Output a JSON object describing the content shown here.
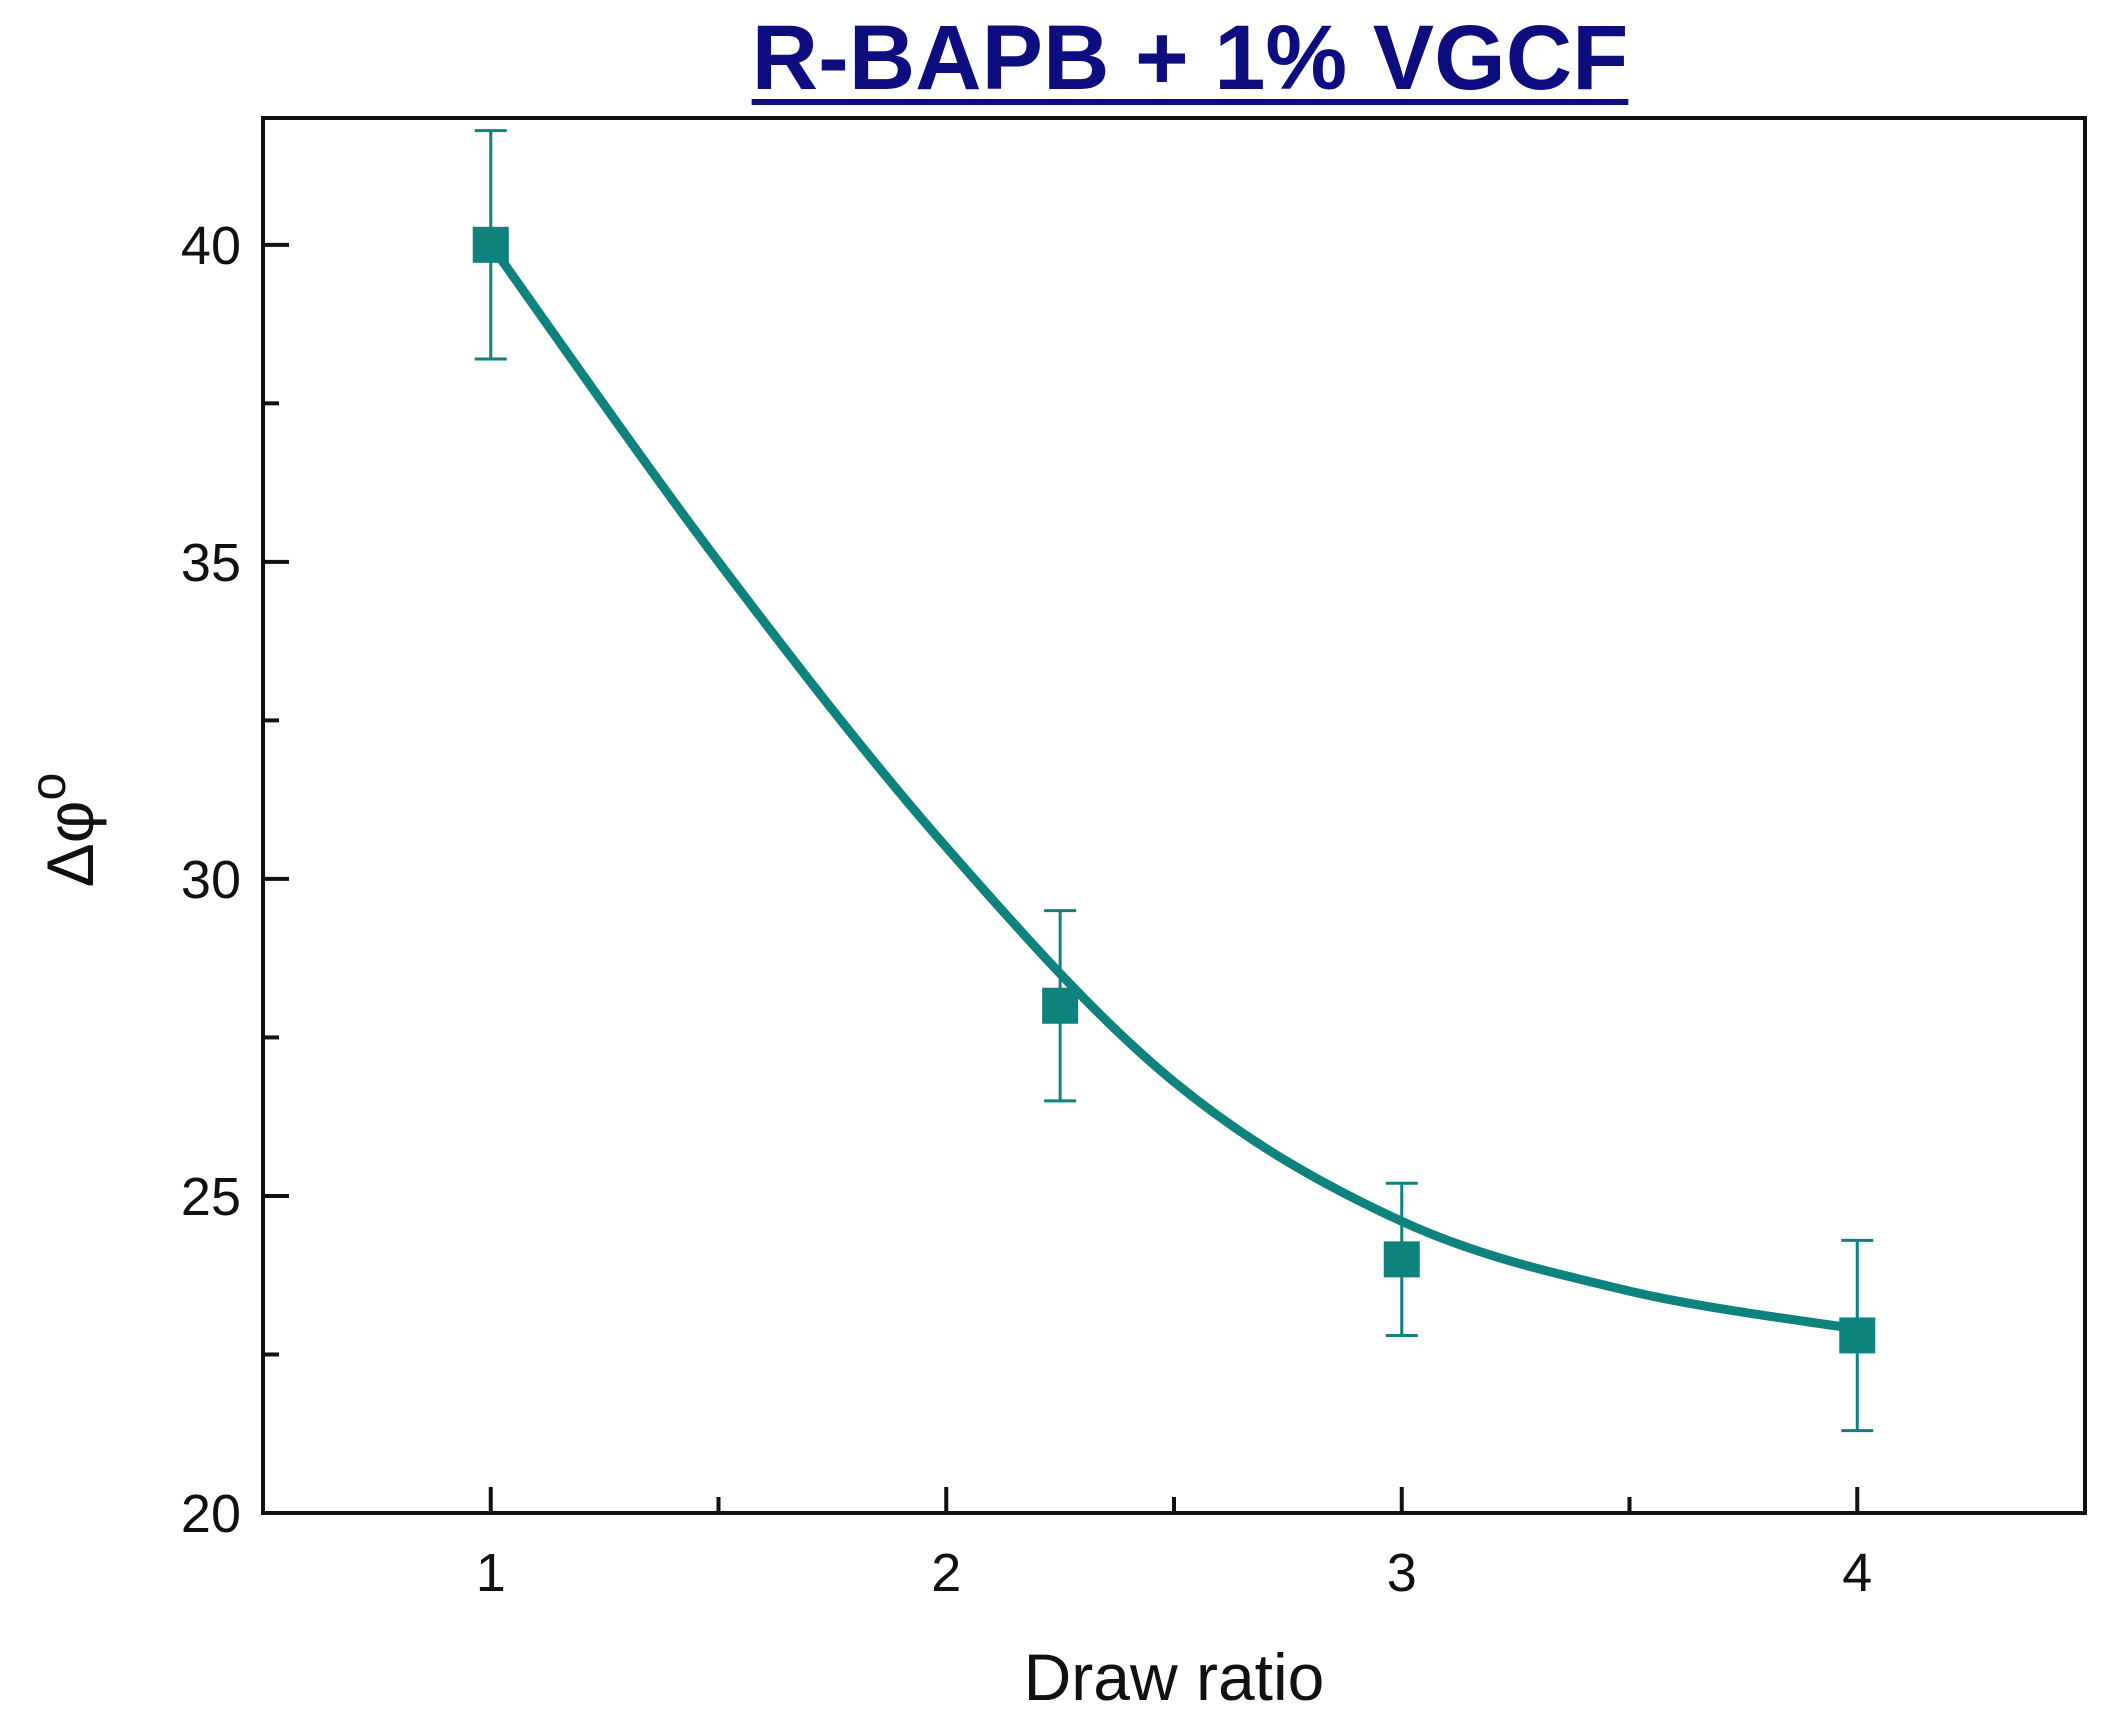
{
  "chart_data": {
    "type": "line",
    "title": "R-BAPB + 1% VGCF",
    "xlabel": "Draw ratio",
    "ylabel": "Δφ",
    "ylabel_superscript": "o",
    "xlim": [
      0.5,
      4.5
    ],
    "ylim": [
      20,
      42
    ],
    "x_ticks": [
      1,
      2,
      3,
      4
    ],
    "y_ticks": [
      20,
      25,
      30,
      35,
      40
    ],
    "series": [
      {
        "name": "R-BAPB + 1% VGCF",
        "marker": "square",
        "color": "#0e827c",
        "points": [
          {
            "x": 1.0,
            "y": 40.0,
            "err_low": 38.2,
            "err_high": 41.8
          },
          {
            "x": 2.25,
            "y": 28.0,
            "err_low": 26.5,
            "err_high": 29.5
          },
          {
            "x": 3.0,
            "y": 24.0,
            "err_low": 22.8,
            "err_high": 25.2
          },
          {
            "x": 4.0,
            "y": 22.8,
            "err_low": 21.3,
            "err_high": 24.3
          }
        ]
      }
    ],
    "fit_curve": {
      "color": "#0e827c",
      "points": [
        [
          1.0,
          40.0
        ],
        [
          1.5,
          35.0
        ],
        [
          2.0,
          30.5
        ],
        [
          2.5,
          26.8
        ],
        [
          3.0,
          24.6
        ],
        [
          3.5,
          23.5
        ],
        [
          4.0,
          22.9
        ]
      ]
    }
  }
}
